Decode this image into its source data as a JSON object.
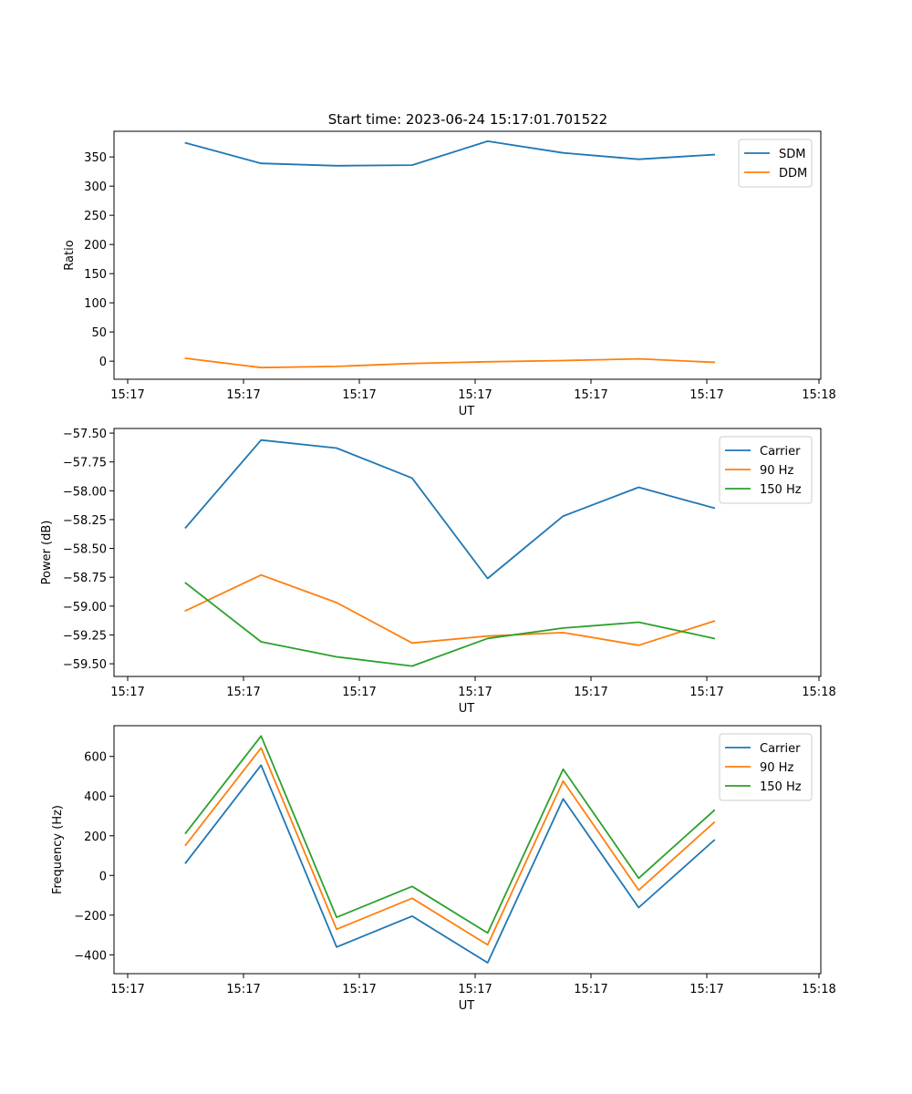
{
  "title": "Start time: 2023-06-24 15:17:01.701522",
  "colors": {
    "blue": "#1f77b4",
    "orange": "#ff7f0e",
    "green": "#2ca02c"
  },
  "chart_data": [
    {
      "type": "line",
      "xlabel": "UT",
      "ylabel": "Ratio",
      "x_tick_labels": [
        "15:17",
        "15:17",
        "15:17",
        "15:17",
        "15:17",
        "15:17",
        "15:18"
      ],
      "y_ticks": [
        0,
        50,
        100,
        150,
        200,
        250,
        300,
        350
      ],
      "ylim": [
        -31,
        394
      ],
      "legend_position": "top-right",
      "series": [
        {
          "name": "SDM",
          "color": "blue",
          "values": [
            374,
            339,
            335,
            336,
            377,
            357,
            346,
            354
          ]
        },
        {
          "name": "DDM",
          "color": "orange",
          "values": [
            5,
            -11,
            -9,
            -4,
            -1,
            1,
            4,
            -2
          ]
        }
      ]
    },
    {
      "type": "line",
      "xlabel": "UT",
      "ylabel": "Power (dB)",
      "x_tick_labels": [
        "15:17",
        "15:17",
        "15:17",
        "15:17",
        "15:17",
        "15:17",
        "15:18"
      ],
      "y_ticks": [
        -57.5,
        -57.75,
        -58.0,
        -58.25,
        -58.5,
        -58.75,
        -59.0,
        -59.25,
        -59.5
      ],
      "y_tick_labels": [
        "−57.50",
        "−57.75",
        "−58.00",
        "−58.25",
        "−58.50",
        "−58.75",
        "−59.00",
        "−59.25",
        "−59.50"
      ],
      "ylim": [
        -59.61,
        -57.46
      ],
      "legend_position": "top-right",
      "series": [
        {
          "name": "Carrier",
          "color": "blue",
          "values": [
            -58.32,
            -57.56,
            -57.63,
            -57.89,
            -58.76,
            -58.22,
            -57.97,
            -58.15
          ]
        },
        {
          "name": "90 Hz",
          "color": "orange",
          "values": [
            -59.04,
            -58.73,
            -58.97,
            -59.32,
            -59.26,
            -59.23,
            -59.34,
            -59.13
          ]
        },
        {
          "name": "150 Hz",
          "color": "green",
          "values": [
            -58.8,
            -59.31,
            -59.44,
            -59.52,
            -59.28,
            -59.19,
            -59.14,
            -59.28
          ]
        }
      ]
    },
    {
      "type": "line",
      "xlabel": "UT",
      "ylabel": "Frequency (Hz)",
      "x_tick_labels": [
        "15:17",
        "15:17",
        "15:17",
        "15:17",
        "15:17",
        "15:17",
        "15:18"
      ],
      "y_ticks": [
        -400,
        -200,
        0,
        200,
        400,
        600
      ],
      "y_tick_labels": [
        "−400",
        "−200",
        "0",
        "200",
        "400",
        "600"
      ],
      "ylim": [
        -495,
        755
      ],
      "legend_position": "top-right",
      "series": [
        {
          "name": "Carrier",
          "color": "blue",
          "values": [
            63,
            556,
            -361,
            -205,
            -440,
            386,
            -162,
            178
          ]
        },
        {
          "name": "90 Hz",
          "color": "orange",
          "values": [
            153,
            643,
            -271,
            -115,
            -350,
            476,
            -74,
            268
          ]
        },
        {
          "name": "150 Hz",
          "color": "green",
          "values": [
            213,
            703,
            -211,
            -55,
            -290,
            536,
            -14,
            328
          ]
        }
      ]
    }
  ]
}
